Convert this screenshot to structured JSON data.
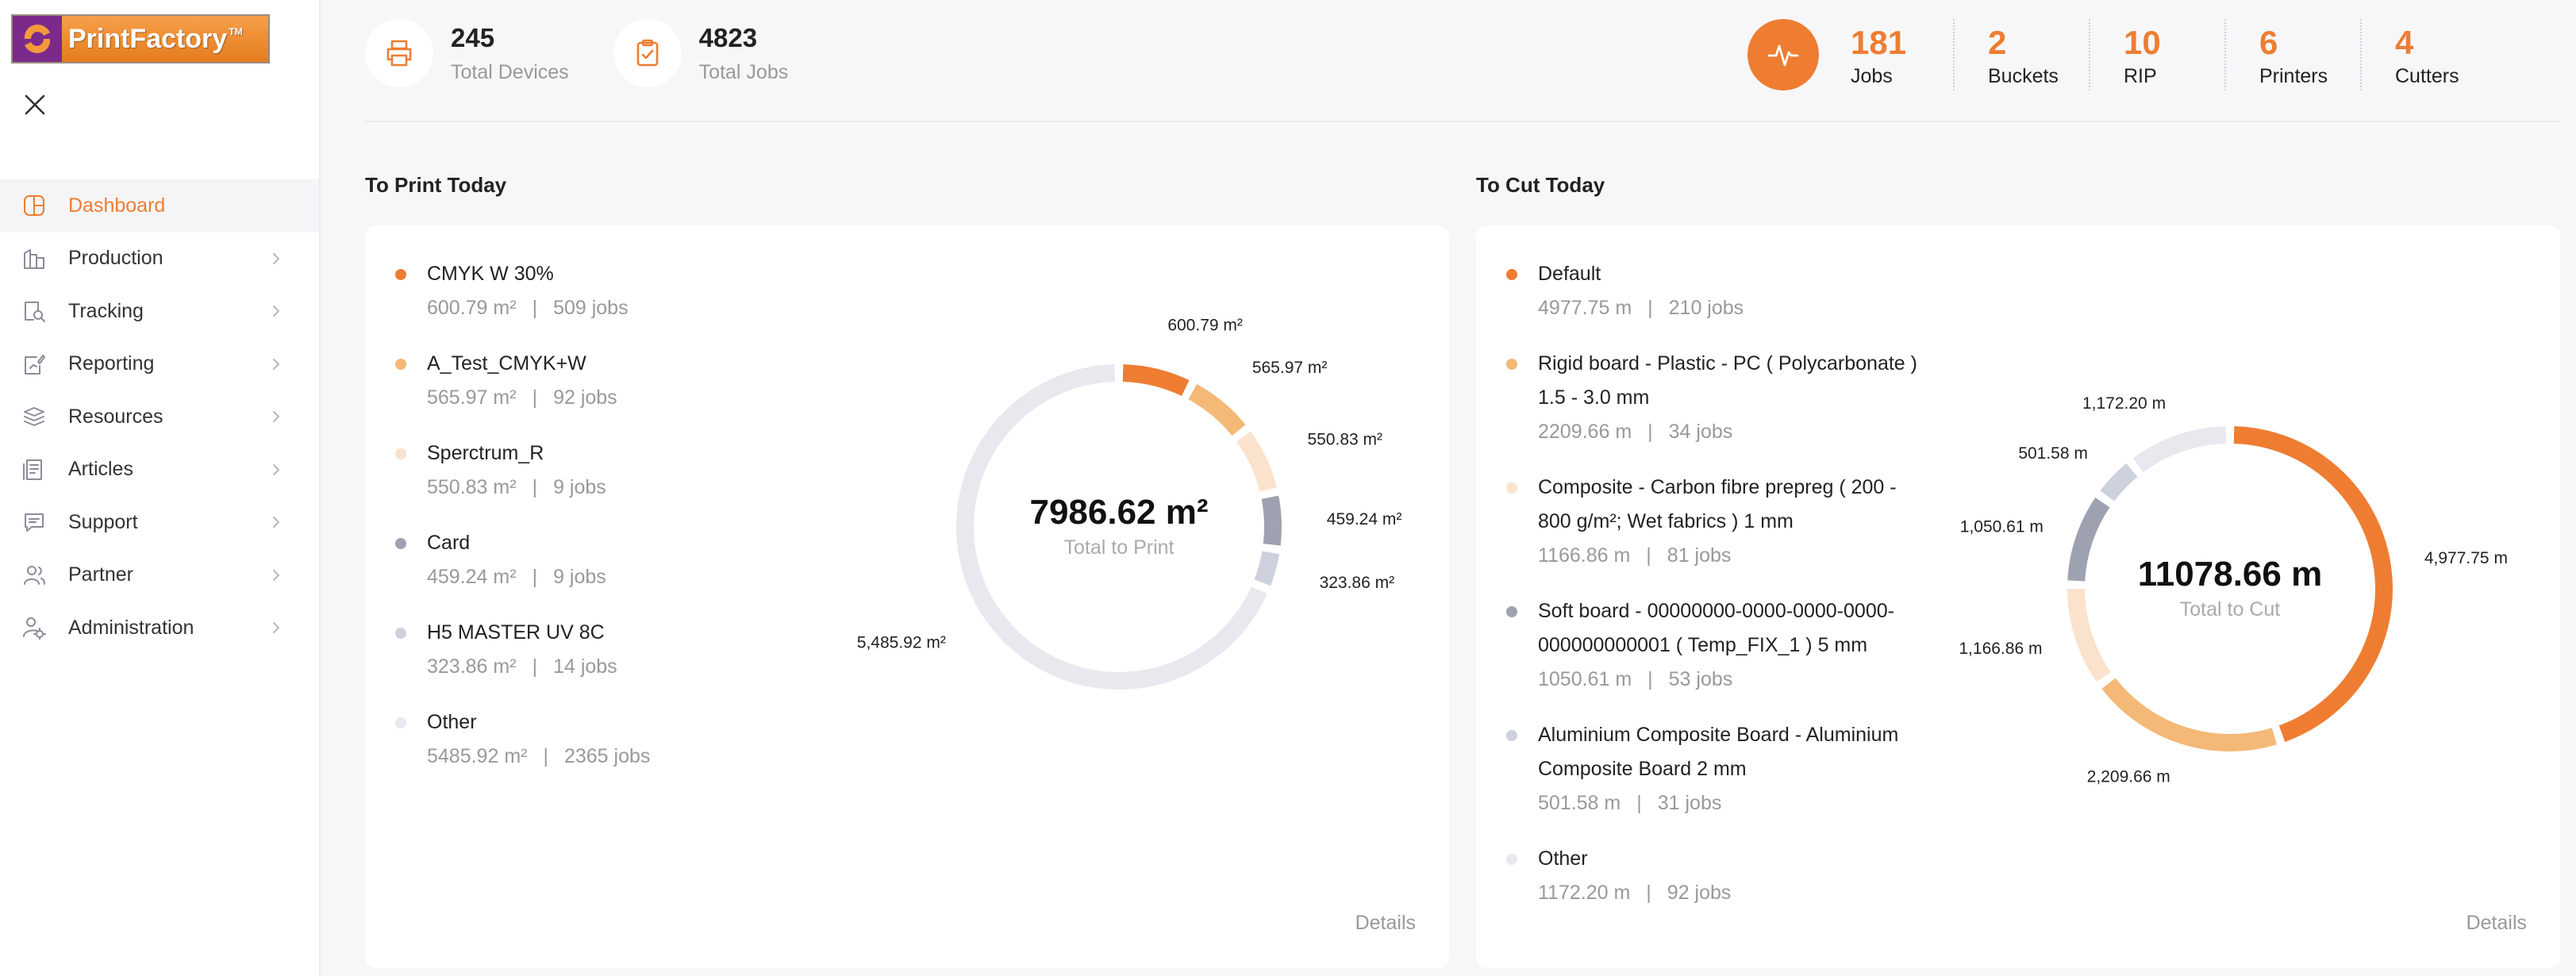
{
  "app": {
    "logo_text": "PrintFactory",
    "logo_tm": "TM"
  },
  "sidebar": {
    "items": [
      {
        "label": "Dashboard",
        "icon": "dashboard-icon",
        "active": true
      },
      {
        "label": "Production",
        "icon": "production-icon"
      },
      {
        "label": "Tracking",
        "icon": "tracking-icon"
      },
      {
        "label": "Reporting",
        "icon": "reporting-icon"
      },
      {
        "label": "Resources",
        "icon": "resources-icon"
      },
      {
        "label": "Articles",
        "icon": "articles-icon"
      },
      {
        "label": "Support",
        "icon": "support-icon"
      },
      {
        "label": "Partner",
        "icon": "partner-icon"
      },
      {
        "label": "Administration",
        "icon": "administration-icon"
      }
    ]
  },
  "header": {
    "total_devices": {
      "value": "245",
      "label": "Total Devices"
    },
    "total_jobs": {
      "value": "4823",
      "label": "Total Jobs"
    },
    "counters": [
      {
        "value": "181",
        "label": "Jobs"
      },
      {
        "value": "2",
        "label": "Buckets"
      },
      {
        "value": "10",
        "label": "RIP"
      },
      {
        "value": "6",
        "label": "Printers"
      },
      {
        "value": "4",
        "label": "Cutters"
      }
    ]
  },
  "colors": {
    "accent": "#ee7d32",
    "light_orange": "#f4b877",
    "peach": "#fbe2cc",
    "slate": "#9ea2b0",
    "lavender": "#cdd0dd",
    "track": "#e8e8ef"
  },
  "print_today": {
    "title": "To Print Today",
    "details_label": "Details",
    "total_value": "7986.62 m²",
    "total_label": "Total to Print",
    "legend": [
      {
        "name": "CMYK W 30%",
        "amount": "600.79 m²",
        "jobs": "509 jobs"
      },
      {
        "name": "A_Test_CMYK+W",
        "amount": "565.97 m²",
        "jobs": "92 jobs"
      },
      {
        "name": "Sperctrum_R",
        "amount": "550.83 m²",
        "jobs": "9 jobs"
      },
      {
        "name": "Card",
        "amount": "459.24 m²",
        "jobs": "9 jobs"
      },
      {
        "name": "H5 MASTER UV 8C",
        "amount": "323.86 m²",
        "jobs": "14 jobs"
      },
      {
        "name": "Other",
        "amount": "5485.92 m²",
        "jobs": "2365 jobs"
      }
    ],
    "sep": "|"
  },
  "cut_today": {
    "title": "To Cut Today",
    "details_label": "Details",
    "total_value": "11078.66 m",
    "total_label": "Total to Cut",
    "legend": [
      {
        "name_lines": [
          "Default"
        ],
        "amount": "4977.75 m",
        "jobs": "210 jobs"
      },
      {
        "name_lines": [
          "Rigid board - Plastic - PC ( Polycarbonate )",
          "1.5 - 3.0 mm"
        ],
        "amount": "2209.66 m",
        "jobs": "34 jobs"
      },
      {
        "name_lines": [
          "Composite - Carbon fibre prepreg ( 200 -",
          "800 g/m²; Wet fabrics ) 1 mm"
        ],
        "amount": "1166.86 m",
        "jobs": "81 jobs"
      },
      {
        "name_lines": [
          "Soft board - 00000000-0000-0000-0000-",
          "000000000001 ( Temp_FIX_1 ) 5 mm"
        ],
        "amount": "1050.61 m",
        "jobs": "53 jobs"
      },
      {
        "name_lines": [
          "Aluminium Composite Board - Aluminium",
          "Composite Board 2 mm"
        ],
        "amount": "501.58 m",
        "jobs": "31 jobs"
      },
      {
        "name_lines": [
          "Other"
        ],
        "amount": "1172.20 m",
        "jobs": "92 jobs"
      }
    ],
    "sep": "|"
  },
  "chart_data": [
    {
      "type": "pie",
      "variant": "donut",
      "title": "To Print Today",
      "unit": "m²",
      "categories": [
        "CMYK W 30%",
        "A_Test_CMYK+W",
        "Sperctrum_R",
        "Card",
        "H5 MASTER UV 8C",
        "Other"
      ],
      "values": [
        600.79,
        565.97,
        550.83,
        459.24,
        323.86,
        5485.92
      ],
      "data_labels": [
        "600.79 m²",
        "565.97 m²",
        "550.83 m²",
        "459.24 m²",
        "323.86 m²",
        "5,485.92 m²"
      ],
      "colors": [
        "#ee7d32",
        "#f4b877",
        "#fbe2cc",
        "#9ea2b0",
        "#cdd0dd",
        "#e8e8ef"
      ],
      "center_text": "7986.62 m²",
      "center_label": "Total to Print"
    },
    {
      "type": "pie",
      "variant": "donut",
      "title": "To Cut Today",
      "unit": "m",
      "categories": [
        "Default",
        "Rigid board - Plastic - PC ( Polycarbonate ) 1.5 - 3.0 mm",
        "Composite - Carbon fibre prepreg ( 200 - 800 g/m²; Wet fabrics ) 1 mm",
        "Soft board - 00000000-0000-0000-0000-000000000001 ( Temp_FIX_1 ) 5 mm",
        "Aluminium Composite Board - Aluminium Composite Board 2 mm",
        "Other"
      ],
      "values": [
        4977.75,
        2209.66,
        1166.86,
        1050.61,
        501.58,
        1172.2
      ],
      "data_labels": [
        "4,977.75 m",
        "2,209.66 m",
        "1,166.86 m",
        "1,050.61 m",
        "501.58 m",
        "1,172.20 m"
      ],
      "colors": [
        "#ee7d32",
        "#f4b877",
        "#fbe2cc",
        "#9ea2b0",
        "#cdd0dd",
        "#e8e8ef"
      ],
      "center_text": "11078.66 m",
      "center_label": "Total to Cut"
    }
  ]
}
